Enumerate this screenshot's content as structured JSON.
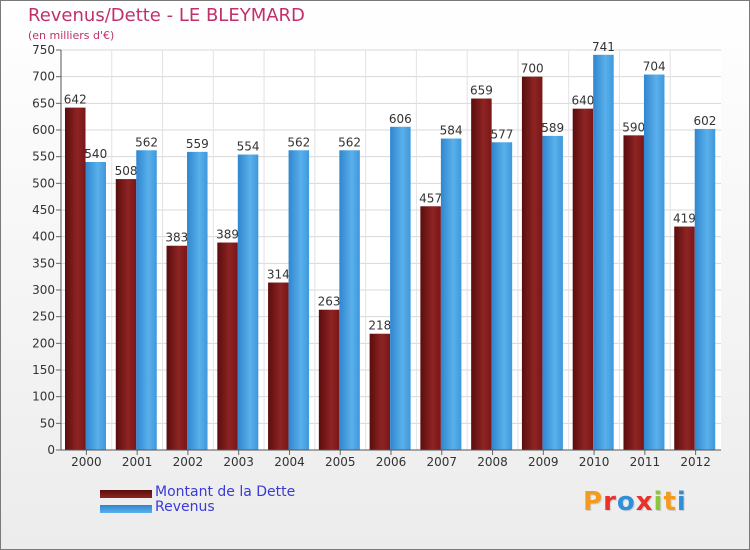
{
  "chart_data": {
    "type": "bar",
    "title": "Revenus/Dette - LE BLEYMARD",
    "subtitle": "(en milliers d'€)",
    "categories": [
      "2000",
      "2001",
      "2002",
      "2003",
      "2004",
      "2005",
      "2006",
      "2007",
      "2008",
      "2009",
      "2010",
      "2011",
      "2012"
    ],
    "series": [
      {
        "name": "Montant de la Dette",
        "color": "#8b1a1a",
        "values": [
          642,
          508,
          383,
          389,
          314,
          263,
          218,
          457,
          659,
          700,
          640,
          590,
          419
        ]
      },
      {
        "name": "Revenus",
        "color": "#4aa3e0",
        "values": [
          540,
          562,
          559,
          554,
          562,
          562,
          606,
          584,
          577,
          589,
          741,
          704,
          602
        ]
      }
    ],
    "ylim": [
      0,
      750
    ],
    "ytick_step": 50,
    "grid": true,
    "legend": "bottom-left"
  },
  "logo": {
    "text": "Proxiti",
    "letters": [
      {
        "ch": "P",
        "color": "#f39a1f"
      },
      {
        "ch": "r",
        "color": "#e8322b"
      },
      {
        "ch": "o",
        "color": "#2f8fd8"
      },
      {
        "ch": "x",
        "color": "#e8322b"
      },
      {
        "ch": "i",
        "color": "#8cc63f"
      },
      {
        "ch": "t",
        "color": "#f39a1f"
      },
      {
        "ch": "i",
        "color": "#2f8fd8"
      }
    ]
  }
}
